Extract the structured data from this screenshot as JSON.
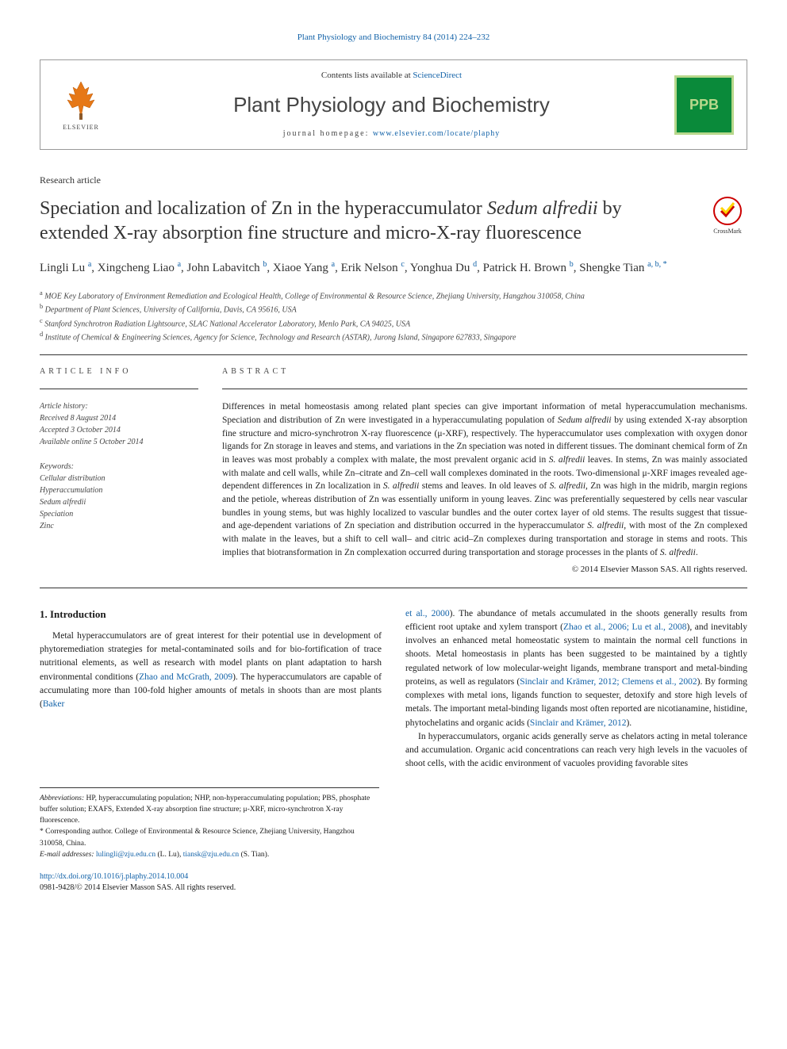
{
  "top_link": {
    "text": "Plant Physiology and Biochemistry 84 (2014) 224–232"
  },
  "header": {
    "contents_text": "Contents lists available at ",
    "contents_link": "ScienceDirect",
    "journal_name": "Plant Physiology and Biochemistry",
    "homepage_label": "journal homepage: ",
    "homepage_url": "www.elsevier.com/locate/plaphy",
    "elsevier_label": "ELSEVIER",
    "ppb_label": "PPB"
  },
  "article_type": "Research article",
  "title_parts": {
    "p1": "Speciation and localization of Zn in the hyperaccumulator ",
    "em1": "Sedum alfredii",
    "p2": " by extended X-ray absorption fine structure and micro-X-ray fluorescence"
  },
  "crossmark_label": "CrossMark",
  "authors_html": "Lingli Lu <sup>a</sup>, Xingcheng Liao <sup>a</sup>, John Labavitch <sup>b</sup>, Xiaoe Yang <sup>a</sup>, Erik Nelson <sup>c</sup>, Yonghua Du <sup>d</sup>, Patrick H. Brown <sup>b</sup>, Shengke Tian <sup>a, b, *</sup>",
  "affiliations": {
    "a": "MOE Key Laboratory of Environment Remediation and Ecological Health, College of Environmental & Resource Science, Zhejiang University, Hangzhou 310058, China",
    "b": "Department of Plant Sciences, University of California, Davis, CA 95616, USA",
    "c": "Stanford Synchrotron Radiation Lightsource, SLAC National Accelerator Laboratory, Menlo Park, CA 94025, USA",
    "d": "Institute of Chemical & Engineering Sciences, Agency for Science, Technology and Research (ASTAR), Jurong Island, Singapore 627833, Singapore"
  },
  "article_info_label": "ARTICLE INFO",
  "abstract_label": "ABSTRACT",
  "history": {
    "label": "Article history:",
    "received": "Received 8 August 2014",
    "accepted": "Accepted 3 October 2014",
    "online": "Available online 5 October 2014"
  },
  "keywords": {
    "label": "Keywords:",
    "items": [
      "Cellular distribution",
      "Hyperaccumulation",
      "Sedum alfredii",
      "Speciation",
      "Zinc"
    ]
  },
  "abstract_text": "Differences in metal homeostasis among related plant species can give important information of metal hyperaccumulation mechanisms. Speciation and distribution of Zn were investigated in a hyperaccumulating population of Sedum alfredii by using extended X-ray absorption fine structure and micro-synchrotron X-ray fluorescence (μ-XRF), respectively. The hyperaccumulator uses complexation with oxygen donor ligands for Zn storage in leaves and stems, and variations in the Zn speciation was noted in different tissues. The dominant chemical form of Zn in leaves was most probably a complex with malate, the most prevalent organic acid in S. alfredii leaves. In stems, Zn was mainly associated with malate and cell walls, while Zn–citrate and Zn–cell wall complexes dominated in the roots. Two-dimensional μ-XRF images revealed age-dependent differences in Zn localization in S. alfredii stems and leaves. In old leaves of S. alfredii, Zn was high in the midrib, margin regions and the petiole, whereas distribution of Zn was essentially uniform in young leaves. Zinc was preferentially sequestered by cells near vascular bundles in young stems, but was highly localized to vascular bundles and the outer cortex layer of old stems. The results suggest that tissue- and age-dependent variations of Zn speciation and distribution occurred in the hyperaccumulator S. alfredii, with most of the Zn complexed with malate in the leaves, but a shift to cell wall– and citric acid–Zn complexes during transportation and storage in stems and roots. This implies that biotransformation in Zn complexation occurred during transportation and storage processes in the plants of S. alfredii.",
  "abstract_copyright": "© 2014 Elsevier Masson SAS. All rights reserved.",
  "intro_heading": "1. Introduction",
  "col1_text": "Metal hyperaccumulators are of great interest for their potential use in development of phytoremediation strategies for metal-contaminated soils and for bio-fortification of trace nutritional elements, as well as research with model plants on plant adaptation to harsh environmental conditions (Zhao and McGrath, 2009). The hyperaccumulators are capable of accumulating more than 100-fold higher amounts of metals in shoots than are most plants (Baker",
  "col1_link1": "Zhao and McGrath, 2009",
  "col1_link2": "Baker",
  "col2_text": "et al., 2000). The abundance of metals accumulated in the shoots generally results from efficient root uptake and xylem transport (Zhao et al., 2006; Lu et al., 2008), and inevitably involves an enhanced metal homeostatic system to maintain the normal cell functions in shoots. Metal homeostasis in plants has been suggested to be maintained by a tightly regulated network of low molecular-weight ligands, membrane transport and metal-binding proteins, as well as regulators (Sinclair and Krämer, 2012; Clemens et al., 2002). By forming complexes with metal ions, ligands function to sequester, detoxify and store high levels of metals. The important metal-binding ligands most often reported are nicotianamine, histidine, phytochelatins and organic acids (Sinclair and Krämer, 2012).",
  "col2_para2": "In hyperaccumulators, organic acids generally serve as chelators acting in metal tolerance and accumulation. Organic acid concentrations can reach very high levels in the vacuoles of shoot cells, with the acidic environment of vacuoles providing favorable sites",
  "col2_link1": "et al., 2000",
  "col2_link2": "Zhao et al., 2006; Lu et al., 2008",
  "col2_link3": "Sinclair and Krämer, 2012; Clemens et al., 2002",
  "col2_link4": "Sinclair and Krämer, 2012",
  "footnotes": {
    "abbrev_label": "Abbreviations:",
    "abbrev_text": " HP, hyperaccumulating population; NHP, non-hyperaccumulating population; PBS, phosphate buffer solution; EXAFS, Extended X-ray absorption fine structure; μ-XRF, micro-synchrotron X-ray fluorescence.",
    "corr_label": "* Corresponding author. ",
    "corr_text": "College of Environmental & Resource Science, Zhejiang University, Hangzhou 310058, China.",
    "email_label": "E-mail addresses: ",
    "email1": "lulingli@zju.edu.cn",
    "email1_name": " (L. Lu), ",
    "email2": "tiansk@zju.edu.cn",
    "email2_name": " (S. Tian)."
  },
  "doi": {
    "url": "http://dx.doi.org/10.1016/j.plaphy.2014.10.004",
    "issn": "0981-9428/© 2014 Elsevier Masson SAS. All rights reserved."
  },
  "colors": {
    "link": "#1262a8",
    "ppb_bg": "#0a8a3a",
    "ppb_border": "#b8d88c",
    "crossmark_ring": "#c00"
  }
}
